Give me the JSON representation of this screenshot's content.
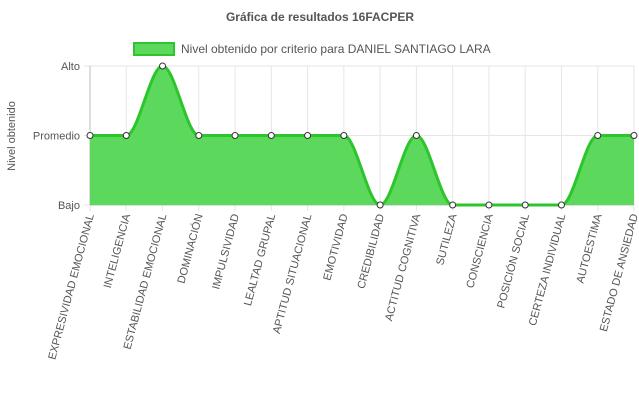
{
  "chart_data": {
    "type": "area",
    "title": "Gráfica de resultados 16FACPER",
    "ylabel": "Nivel obtenido",
    "xlabel": "",
    "y_levels": [
      "Bajo",
      "Promedio",
      "Alto"
    ],
    "categories": [
      "EXPRESIVIDAD EMOCIONAL",
      "INTELIGENCIA",
      "ESTABILIDAD EMOCIONAL",
      "DOMINACIÓN",
      "IMPULSIVIDAD",
      "LEALTAD GRUPAL",
      "APTITUD SITUACIONAL",
      "EMOTIVIDAD",
      "CREDIBILIDAD",
      "ACTITUD COGNITIVA",
      "SUTILEZA",
      "CONSCIENCIA",
      "POSICIÓN SOCIAL",
      "CERTEZA INDIVIDUAL",
      "AUTOESTIMA",
      "ESTADO DE ANSIEDAD"
    ],
    "series": [
      {
        "name": "Nivel obtenido por criterio para DANIEL SANTIAGO LARA",
        "values": [
          1,
          1,
          2,
          1,
          1,
          1,
          1,
          1,
          0,
          1,
          0,
          0,
          0,
          0,
          1,
          1
        ]
      }
    ],
    "ylim": [
      0,
      2
    ],
    "grid": true,
    "legend_position": "top",
    "colors": {
      "fill": "#5cd85c",
      "stroke": "#2cc52c",
      "grid": "#e6e6e6",
      "point_fill": "#ffffff",
      "point_stroke": "#333333"
    }
  }
}
